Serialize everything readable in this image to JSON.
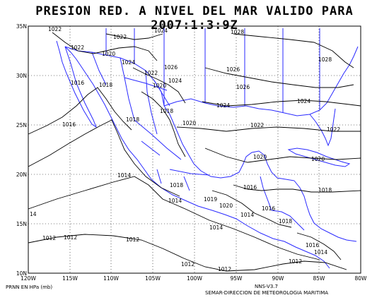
{
  "title": "PRESION RED. A NIVEL DEL MAR VALIDO PARA 2007:1:3:9Z",
  "footer": {
    "units": "PRNN EN HPa (mb)",
    "version": "NNS-V3.7",
    "credit": "SEMAR-DIRECCION DE METEOROLOGIA MARITIMA"
  },
  "axes": {
    "lon_labels": [
      "120W",
      "115W",
      "110W",
      "105W",
      "100W",
      "95W",
      "90W",
      "85W",
      "80W"
    ],
    "lat_labels": [
      "10N",
      "15N",
      "20N",
      "25N",
      "30N",
      "35N"
    ]
  },
  "colors": {
    "coast": "#2a2aff",
    "contour": "#000000",
    "grid": "#000000"
  },
  "isobar_labels": [
    {
      "t": "1022"
    },
    {
      "t": "1022"
    },
    {
      "t": "1024"
    },
    {
      "t": "1028"
    },
    {
      "t": "1022"
    },
    {
      "t": "1020"
    },
    {
      "t": "1024"
    },
    {
      "t": "1026"
    },
    {
      "t": "1028"
    },
    {
      "t": "1022"
    },
    {
      "t": "1020"
    },
    {
      "t": "1024"
    },
    {
      "t": "1026"
    },
    {
      "t": "1026"
    },
    {
      "t": "1016"
    },
    {
      "t": "1018"
    },
    {
      "t": "1018"
    },
    {
      "t": "1024"
    },
    {
      "t": "1024"
    },
    {
      "t": "1016"
    },
    {
      "t": "1018"
    },
    {
      "t": "1020"
    },
    {
      "t": "1022"
    },
    {
      "t": "1022"
    },
    {
      "t": "1020"
    },
    {
      "t": "1020"
    },
    {
      "t": "1014"
    },
    {
      "t": "1018"
    },
    {
      "t": "1016"
    },
    {
      "t": "1018"
    },
    {
      "t": "1014"
    },
    {
      "t": "1016"
    },
    {
      "t": "1018"
    },
    {
      "t": "1014"
    },
    {
      "t": "1012"
    },
    {
      "t": "1012"
    },
    {
      "t": "1016"
    },
    {
      "t": "1014"
    },
    {
      "t": "1012"
    },
    {
      "t": "1012"
    },
    {
      "t": "14"
    },
    {
      "t": "1020"
    },
    {
      "t": "1012"
    },
    {
      "t": "1012"
    },
    {
      "t": "1019"
    },
    {
      "t": "1014"
    }
  ]
}
